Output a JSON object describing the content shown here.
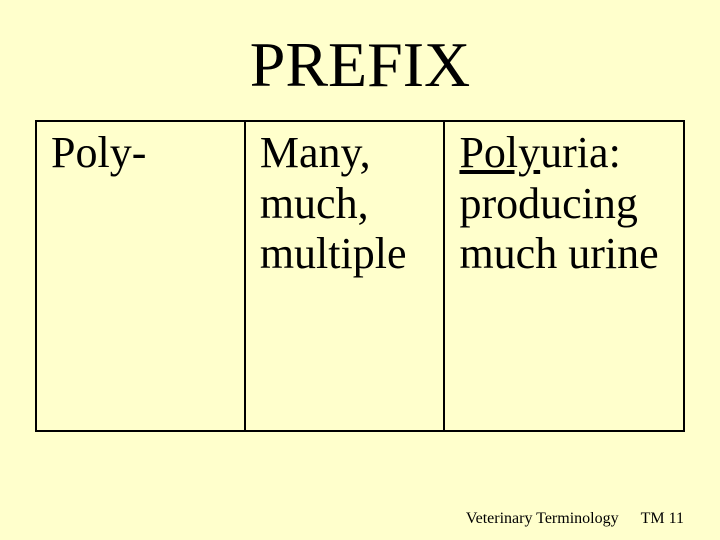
{
  "title": "PREFIX",
  "table": {
    "col1": "Poly-",
    "col2_line1": "Many,",
    "col2_line2": "much,",
    "col2_line3": "multiple",
    "col3_term_prefix": "Poly",
    "col3_term_suffix": "uria:",
    "col3_def_line1": "producing",
    "col3_def_line2": "much urine"
  },
  "footer": {
    "course": "Veterinary Terminology",
    "page": "TM  11"
  },
  "style": {
    "background_color": "#ffffcc",
    "text_color": "#000000",
    "title_fontsize": 64,
    "cell_fontsize": 44,
    "col3_fontsize": 40,
    "footer_fontsize": 16,
    "border_color": "#000000",
    "border_width": 2,
    "font_family": "Times New Roman"
  }
}
